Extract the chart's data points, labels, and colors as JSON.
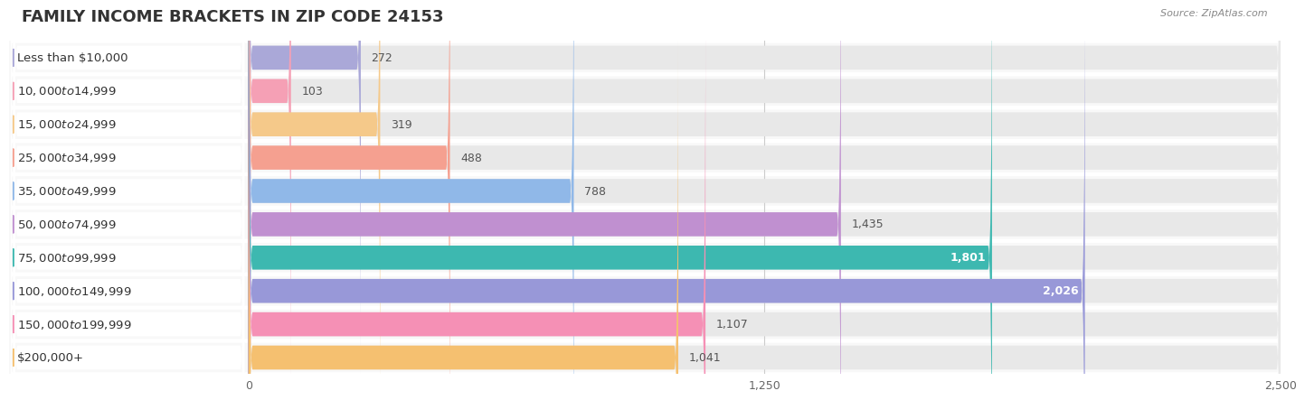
{
  "title": "FAMILY INCOME BRACKETS IN ZIP CODE 24153",
  "source_text": "Source: ZipAtlas.com",
  "categories": [
    "Less than $10,000",
    "$10,000 to $14,999",
    "$15,000 to $24,999",
    "$25,000 to $34,999",
    "$35,000 to $49,999",
    "$50,000 to $74,999",
    "$75,000 to $99,999",
    "$100,000 to $149,999",
    "$150,000 to $199,999",
    "$200,000+"
  ],
  "values": [
    272,
    103,
    319,
    488,
    788,
    1435,
    1801,
    2026,
    1107,
    1041
  ],
  "bar_colors": [
    "#aaa8d8",
    "#f5a0b5",
    "#f5c98a",
    "#f5a090",
    "#90b8e8",
    "#c090d0",
    "#3db8b0",
    "#9898d8",
    "#f590b5",
    "#f5c070"
  ],
  "xlim": [
    0,
    2500
  ],
  "xticks": [
    0,
    1250,
    2500
  ],
  "xtick_labels": [
    "0",
    "1,250",
    "2,500"
  ],
  "fig_bg_color": "#ffffff",
  "bar_bg_color": "#e8e8e8",
  "label_bg_color": "#f0f0f0",
  "row_bg_color": "#f8f8f8",
  "title_fontsize": 13,
  "label_fontsize": 9.5,
  "value_fontsize": 9,
  "value_inside_threshold": 1600,
  "value_inside_color": "#ffffff",
  "value_outside_color": "#555555"
}
